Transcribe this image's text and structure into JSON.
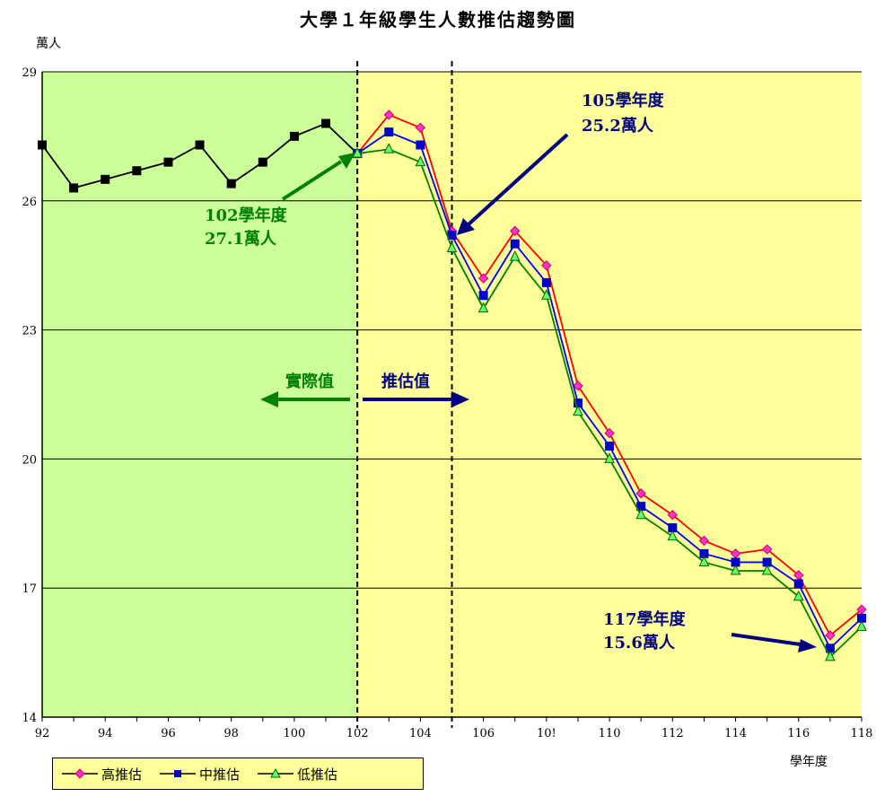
{
  "chart_data": {
    "type": "line",
    "title": "大學１年級學生人數推估趨勢圖",
    "ylabel": "萬人",
    "xlabel": "學年度",
    "ylim": [
      14,
      29
    ],
    "xlim": [
      92,
      118
    ],
    "yticks": [
      "29",
      "26",
      "23",
      "20",
      "17",
      "14"
    ],
    "xticks": [
      "92",
      "94",
      "96",
      "98",
      "100",
      "102",
      "104",
      "106",
      "10!",
      "110",
      "112",
      "114",
      "116",
      "118"
    ],
    "grid": true,
    "legend": "bottom-left",
    "regions": [
      {
        "label": "實際值",
        "from": 92,
        "to": 102,
        "color": "#ccff99",
        "arrow": "left"
      },
      {
        "label": "推估值",
        "from": 102,
        "to": 118,
        "color": "#ffff99",
        "arrow": "right"
      }
    ],
    "dividers": [
      102,
      105
    ],
    "series": [
      {
        "name": "實際值",
        "color": "#000000",
        "marker": "square",
        "x": [
          92,
          93,
          94,
          95,
          96,
          97,
          98,
          99,
          100,
          101,
          102
        ],
        "values": [
          27.3,
          26.3,
          26.5,
          26.7,
          26.9,
          27.3,
          26.4,
          26.9,
          27.5,
          27.8,
          27.1
        ]
      },
      {
        "name": "高推估",
        "color": "#ff0000",
        "marker": "diamond",
        "x": [
          102,
          103,
          104,
          105,
          106,
          107,
          108,
          109,
          110,
          111,
          112,
          113,
          114,
          115,
          116,
          117,
          118
        ],
        "values": [
          27.1,
          28.0,
          27.7,
          25.3,
          24.2,
          25.3,
          24.5,
          21.7,
          20.6,
          19.2,
          18.7,
          18.1,
          17.8,
          17.9,
          17.3,
          15.9,
          16.5
        ]
      },
      {
        "name": "中推估",
        "color": "#0000ff",
        "marker": "square",
        "x": [
          102,
          103,
          104,
          105,
          106,
          107,
          108,
          109,
          110,
          111,
          112,
          113,
          114,
          115,
          116,
          117,
          118
        ],
        "values": [
          27.1,
          27.6,
          27.3,
          25.2,
          23.8,
          25.0,
          24.1,
          21.3,
          20.3,
          18.9,
          18.4,
          17.8,
          17.6,
          17.6,
          17.1,
          15.6,
          16.3
        ]
      },
      {
        "name": "低推估",
        "color": "#008000",
        "marker": "triangle",
        "x": [
          102,
          103,
          104,
          105,
          106,
          107,
          108,
          109,
          110,
          111,
          112,
          113,
          114,
          115,
          116,
          117,
          118
        ],
        "values": [
          27.1,
          27.2,
          26.9,
          24.9,
          23.5,
          24.7,
          23.8,
          21.1,
          20.0,
          18.7,
          18.2,
          17.6,
          17.4,
          17.4,
          16.8,
          15.4,
          16.1
        ]
      }
    ],
    "annotations": [
      {
        "line1": "102學年度",
        "line2": "27.1萬人",
        "color": "#008000",
        "x": 102,
        "y": 27.1
      },
      {
        "line1": "105學年度",
        "line2": "25.2萬人",
        "color": "#000080",
        "x": 105,
        "y": 25.2
      },
      {
        "line1": "117學年度",
        "line2": "15.6萬人",
        "color": "#000080",
        "x": 117,
        "y": 15.6
      }
    ]
  },
  "legend_items": [
    {
      "label": "高推估",
      "color": "#ff0000"
    },
    {
      "label": "中推估",
      "color": "#0000ff"
    },
    {
      "label": "低推估",
      "color": "#008000"
    }
  ],
  "colors": {
    "actual_bg": "#ccff99",
    "forecast_bg": "#ffff99",
    "grid": "#000000"
  }
}
